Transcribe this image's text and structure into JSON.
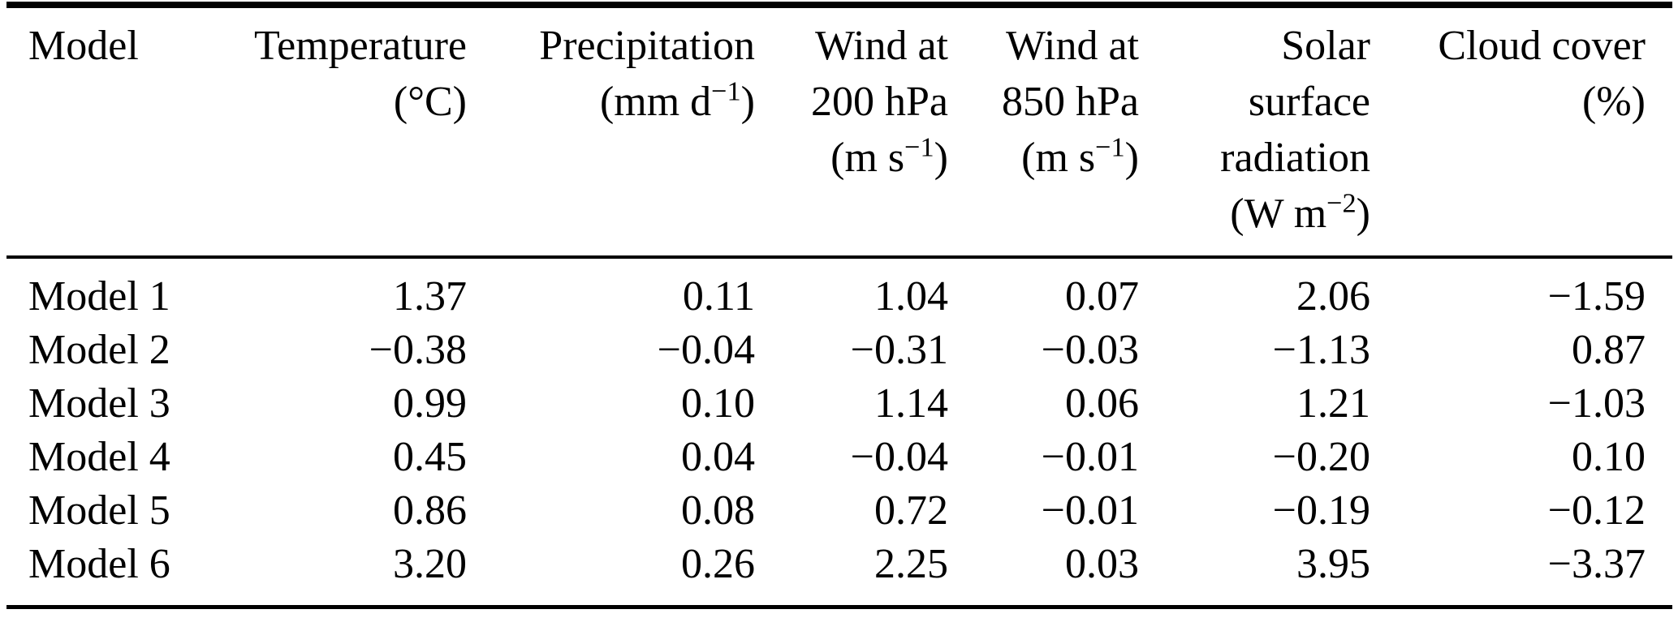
{
  "table": {
    "columns": [
      {
        "id": "model",
        "lines": [
          "Model"
        ]
      },
      {
        "id": "temperature",
        "lines": [
          "Temperature",
          "(°C)"
        ]
      },
      {
        "id": "precipitation",
        "lines": [
          "Precipitation",
          "(mm d^{−1})"
        ]
      },
      {
        "id": "wind-200hpa",
        "lines": [
          "Wind at",
          "200 hPa",
          "(m s^{−1})"
        ]
      },
      {
        "id": "wind-850hpa",
        "lines": [
          "Wind at",
          "850 hPa",
          "(m s^{−1})"
        ]
      },
      {
        "id": "solar-surface-radiation",
        "lines": [
          "Solar",
          "surface",
          "radiation",
          "(W m^{−2})"
        ]
      },
      {
        "id": "cloud-cover",
        "lines": [
          "Cloud cover",
          "(%)"
        ]
      }
    ],
    "rows": [
      {
        "cells": [
          "Model 1",
          "1.37",
          "0.11",
          "1.04",
          "0.07",
          "2.06",
          "−1.59"
        ]
      },
      {
        "cells": [
          "Model 2",
          "−0.38",
          "−0.04",
          "−0.31",
          "−0.03",
          "−1.13",
          "0.87"
        ]
      },
      {
        "cells": [
          "Model 3",
          "0.99",
          "0.10",
          "1.14",
          "0.06",
          "1.21",
          "−1.03"
        ]
      },
      {
        "cells": [
          "Model 4",
          "0.45",
          "0.04",
          "−0.04",
          "−0.01",
          "−0.20",
          "0.10"
        ]
      },
      {
        "cells": [
          "Model 5",
          "0.86",
          "0.08",
          "0.72",
          "−0.01",
          "−0.19",
          "−0.12"
        ]
      },
      {
        "cells": [
          "Model 6",
          "3.20",
          "0.26",
          "2.25",
          "0.03",
          "3.95",
          "−3.37"
        ]
      }
    ]
  },
  "colors": {
    "text": "#000000",
    "background": "#ffffff",
    "rule": "#000000"
  }
}
